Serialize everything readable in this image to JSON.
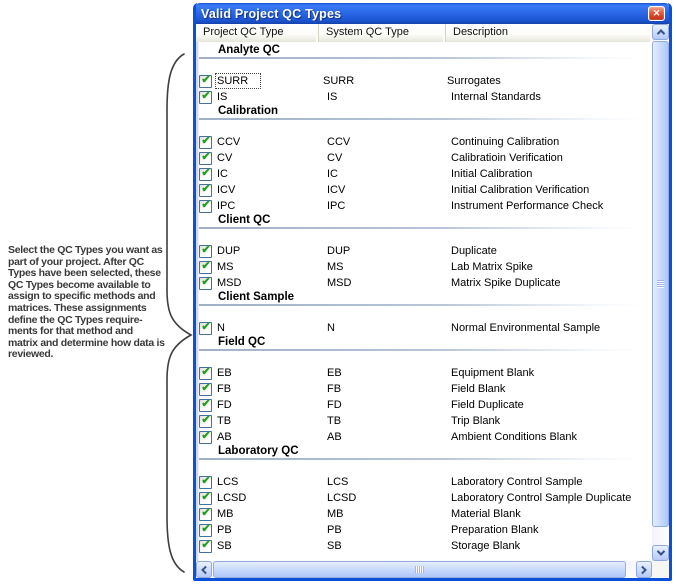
{
  "annotation": {
    "text": "Select the QC Types you want as\npart of your project. After QC\nTypes have been selected, these\nQC Types become available to\nassign to specific methods and\nmatrices. These assignments\ndefine the QC Types require-\nments for that method and\nmatrix and determine how data is\nreviewed."
  },
  "dialog": {
    "title": "Valid Project QC Types",
    "icons": {
      "close": "✕",
      "check": "✔"
    },
    "colors": {
      "title_bar": "#2A69E8",
      "border": "#0A50D8",
      "check_green": "#1CA11C",
      "close_red": "#C93A1F"
    },
    "columns": [
      "Project QC Type",
      "System QC Type",
      "Description"
    ],
    "groups": [
      {
        "name": "Analyte QC",
        "rows": [
          {
            "project": "SURR",
            "system": "SURR",
            "description": "Surrogates",
            "checked": true,
            "focused": true
          },
          {
            "project": "IS",
            "system": "IS",
            "description": "Internal Standards",
            "checked": true
          }
        ]
      },
      {
        "name": "Calibration",
        "rows": [
          {
            "project": "CCV",
            "system": "CCV",
            "description": "Continuing Calibration",
            "checked": true
          },
          {
            "project": "CV",
            "system": "CV",
            "description": "Calibratioin Verification",
            "checked": true
          },
          {
            "project": "IC",
            "system": "IC",
            "description": "Initial Calibration",
            "checked": true
          },
          {
            "project": "ICV",
            "system": "ICV",
            "description": "Initial Calibration Verification",
            "checked": true
          },
          {
            "project": "IPC",
            "system": "IPC",
            "description": "Instrument Performance Check",
            "checked": true
          }
        ]
      },
      {
        "name": "Client QC",
        "rows": [
          {
            "project": "DUP",
            "system": "DUP",
            "description": "Duplicate",
            "checked": true
          },
          {
            "project": "MS",
            "system": "MS",
            "description": "Lab Matrix Spike",
            "checked": true
          },
          {
            "project": "MSD",
            "system": "MSD",
            "description": "Matrix Spike Duplicate",
            "checked": true
          }
        ]
      },
      {
        "name": "Client Sample",
        "rows": [
          {
            "project": "N",
            "system": "N",
            "description": "Normal Environmental Sample",
            "checked": true
          }
        ]
      },
      {
        "name": "Field QC",
        "rows": [
          {
            "project": "EB",
            "system": "EB",
            "description": "Equipment Blank",
            "checked": true
          },
          {
            "project": "FB",
            "system": "FB",
            "description": "Field Blank",
            "checked": true
          },
          {
            "project": "FD",
            "system": "FD",
            "description": "Field Duplicate",
            "checked": true
          },
          {
            "project": "TB",
            "system": "TB",
            "description": "Trip Blank",
            "checked": true
          },
          {
            "project": "AB",
            "system": "AB",
            "description": "Ambient Conditions Blank",
            "checked": true
          }
        ]
      },
      {
        "name": "Laboratory QC",
        "rows": [
          {
            "project": "LCS",
            "system": "LCS",
            "description": "Laboratory Control Sample",
            "checked": true
          },
          {
            "project": "LCSD",
            "system": "LCSD",
            "description": "Laboratory Control Sample Duplicate",
            "checked": true
          },
          {
            "project": "MB",
            "system": "MB",
            "description": "Material Blank",
            "checked": true
          },
          {
            "project": "PB",
            "system": "PB",
            "description": "Preparation Blank",
            "checked": true
          },
          {
            "project": "SB",
            "system": "SB",
            "description": "Storage Blank",
            "checked": true
          }
        ]
      }
    ]
  }
}
